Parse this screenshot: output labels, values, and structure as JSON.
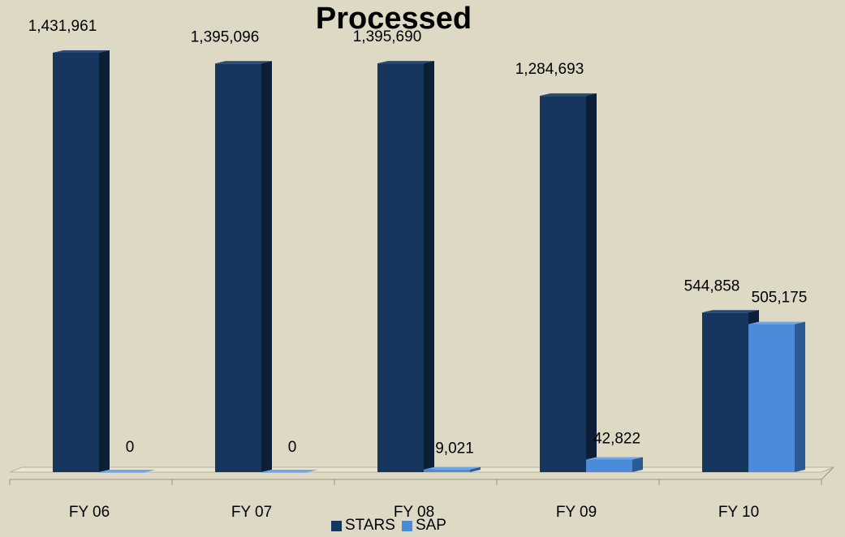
{
  "chart_data": {
    "type": "bar",
    "title": "Processed",
    "categories": [
      "FY 06",
      "FY 07",
      "FY 08",
      "FY 09",
      "FY 10"
    ],
    "series": [
      {
        "name": "STARS",
        "values": [
          1431961,
          1395096,
          1395690,
          1284693,
          544858
        ],
        "labels": [
          "1,431,961",
          "1,395,096",
          "1,395,690",
          "1,284,693",
          "544,858"
        ],
        "color": "#17365d"
      },
      {
        "name": "SAP",
        "values": [
          0,
          0,
          9021,
          42822,
          505175
        ],
        "labels": [
          "0",
          "0",
          "9,021",
          "42,822",
          "505,175"
        ],
        "color": "#4a8ad8"
      }
    ],
    "ylim": [
      0,
      1431961
    ],
    "grid": false,
    "legend_position": "bottom",
    "style": "3d-clustered-column"
  }
}
